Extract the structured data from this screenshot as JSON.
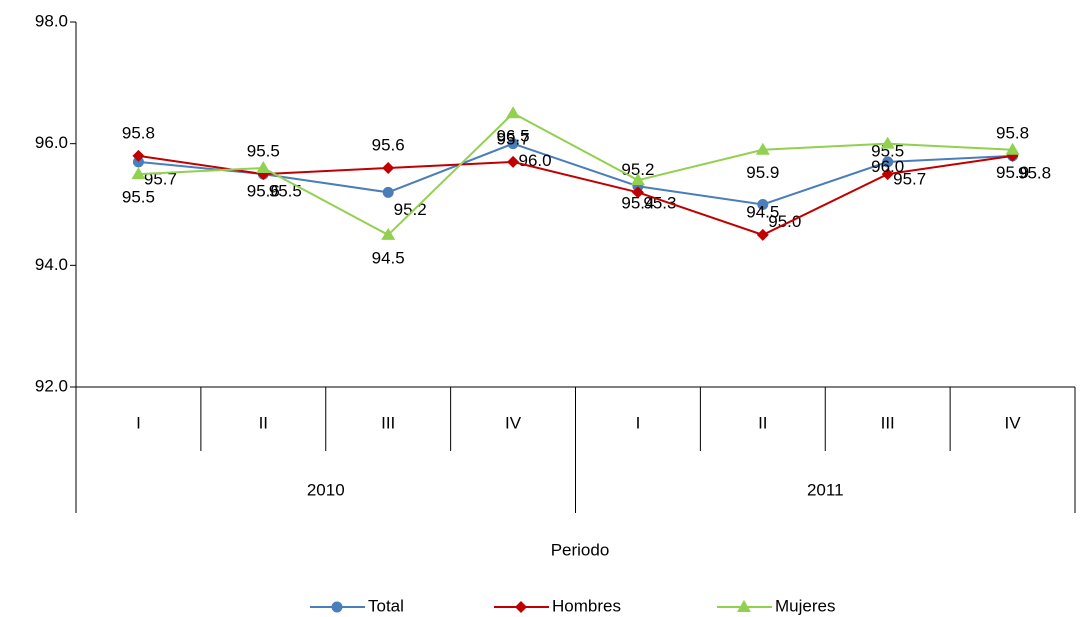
{
  "chart_data": {
    "type": "line",
    "x_label": "Periodo",
    "categories": [
      "I",
      "II",
      "III",
      "IV",
      "I",
      "II",
      "III",
      "IV"
    ],
    "groups": [
      "2010",
      "2011"
    ],
    "ylim": [
      92,
      98
    ],
    "yticks": [
      {
        "value": 92,
        "label": "92.0"
      },
      {
        "value": 94,
        "label": "94.0"
      },
      {
        "value": 96,
        "label": "96.0"
      },
      {
        "value": 98,
        "label": "98.0"
      }
    ],
    "grid": false,
    "legend": "bottom",
    "series": [
      {
        "name": "Total",
        "color": "#4a7ebb",
        "marker": "circle",
        "values": [
          95.7,
          95.5,
          95.2,
          96,
          95.3,
          95,
          95.7,
          95.8
        ],
        "value_labels": [
          "95.7",
          "95.5",
          "95.2",
          "96.0",
          "95.3",
          "95.0",
          "95.7",
          "95.8"
        ]
      },
      {
        "name": "Hombres",
        "color": "#c00000",
        "marker": "diamond",
        "values": [
          95.8,
          95.5,
          95.6,
          95.7,
          95.2,
          94.5,
          95.5,
          95.8
        ],
        "value_labels": [
          "95.8",
          "95.5",
          "95.6",
          "95.7",
          "95.2",
          "94.5",
          "95.5",
          "95.8"
        ]
      },
      {
        "name": "Mujeres",
        "color": "#92d050",
        "marker": "triangle",
        "values": [
          95.5,
          95.6,
          94.5,
          96.5,
          95.4,
          95.9,
          96,
          95.9
        ],
        "value_labels": [
          "95.5",
          "95.6",
          "94.5",
          "96.5",
          "95.4",
          "95.9",
          "96.0",
          "95.9"
        ]
      }
    ]
  }
}
